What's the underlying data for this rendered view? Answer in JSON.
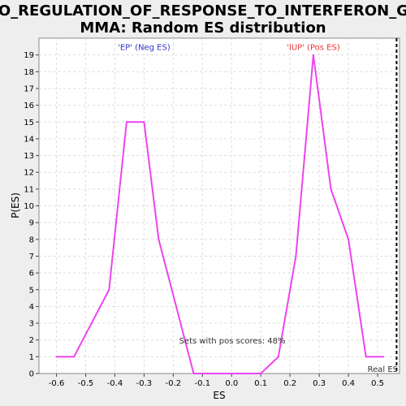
{
  "chart_data": {
    "type": "line",
    "title_line1": "GO_REGULATION_OF_RESPONSE_TO_INTERFERON_GA",
    "title_line2": "MMA: Random ES distribution",
    "xlabel": "ES",
    "ylabel": "P(ES)",
    "xlim": [
      -0.66,
      0.575
    ],
    "ylim": [
      0,
      20
    ],
    "x_ticks": [
      "-0.6",
      "-0.5",
      "-0.4",
      "-0.3",
      "-0.2",
      "-0.1",
      "0.0",
      "0.1",
      "0.2",
      "0.3",
      "0.4",
      "0.5"
    ],
    "y_ticks": [
      "0",
      "1",
      "2",
      "3",
      "4",
      "5",
      "6",
      "7",
      "8",
      "9",
      "10",
      "11",
      "12",
      "13",
      "14",
      "15",
      "16",
      "17",
      "18",
      "19"
    ],
    "grid": true,
    "series": [
      {
        "color": "#ee44ee",
        "points": [
          [
            -0.6,
            1
          ],
          [
            -0.54,
            1
          ],
          [
            -0.42,
            5
          ],
          [
            -0.36,
            15
          ],
          [
            -0.3,
            15
          ],
          [
            -0.25,
            8
          ],
          [
            -0.19,
            4
          ],
          [
            -0.13,
            0
          ],
          [
            -0.07,
            0
          ],
          [
            0.0,
            0
          ],
          [
            0.1,
            0
          ],
          [
            0.16,
            1
          ],
          [
            0.22,
            7
          ],
          [
            0.28,
            19
          ],
          [
            0.34,
            11
          ],
          [
            0.4,
            8
          ],
          [
            0.46,
            1
          ],
          [
            0.52,
            1
          ]
        ]
      }
    ],
    "annotations": [
      {
        "text": "'EP' (Neg ES)",
        "x": -0.3,
        "y": 19.3,
        "color": "#3333cc"
      },
      {
        "text": "'IUP' (Pos ES)",
        "x": 0.28,
        "y": 19.3,
        "color": "#ee3333"
      },
      {
        "text": "Sets with pos scores: 48%",
        "x": -0.18,
        "y": 1.8,
        "color": "#333333"
      },
      {
        "text": "Real ES",
        "x": 0.57,
        "y": 0.1,
        "color": "#333333"
      }
    ],
    "real_es": 0.565,
    "line_color": "#ee44ee",
    "grid_color": "#dddddd"
  }
}
